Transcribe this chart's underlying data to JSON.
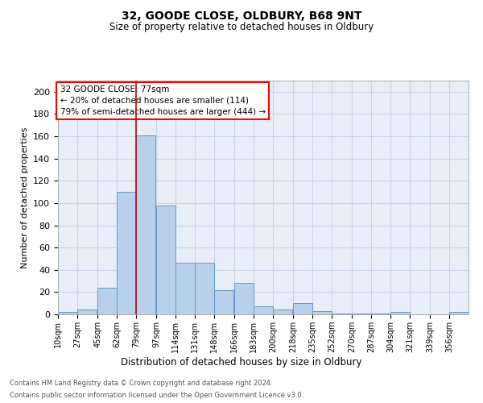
{
  "title1": "32, GOODE CLOSE, OLDBURY, B68 9NT",
  "title2": "Size of property relative to detached houses in Oldbury",
  "xlabel": "Distribution of detached houses by size in Oldbury",
  "ylabel": "Number of detached properties",
  "footnote1": "Contains HM Land Registry data © Crown copyright and database right 2024.",
  "footnote2": "Contains public sector information licensed under the Open Government Licence v3.0.",
  "annotation_line1": "32 GOODE CLOSE: 77sqm",
  "annotation_line2": "← 20% of detached houses are smaller (114)",
  "annotation_line3": "79% of semi-detached houses are larger (444) →",
  "bin_labels": [
    "10sqm",
    "27sqm",
    "45sqm",
    "62sqm",
    "79sqm",
    "97sqm",
    "114sqm",
    "131sqm",
    "148sqm",
    "166sqm",
    "183sqm",
    "200sqm",
    "218sqm",
    "235sqm",
    "252sqm",
    "270sqm",
    "287sqm",
    "304sqm",
    "321sqm",
    "339sqm",
    "356sqm"
  ],
  "bin_edges": [
    10,
    27,
    45,
    62,
    79,
    97,
    114,
    131,
    148,
    166,
    183,
    200,
    218,
    235,
    252,
    270,
    287,
    304,
    321,
    339,
    356
  ],
  "bar_heights": [
    2,
    4,
    24,
    110,
    161,
    98,
    46,
    46,
    22,
    28,
    7,
    4,
    10,
    3,
    1,
    1,
    1,
    2,
    0,
    0,
    2
  ],
  "bar_color": "#b8d0ea",
  "bar_edge_color": "#6699cc",
  "grid_color": "#c8d4e8",
  "bg_color": "#e8eef8",
  "vline_x": 79,
  "vline_color": "#cc0000",
  "ylim": [
    0,
    210
  ],
  "yticks": [
    0,
    20,
    40,
    60,
    80,
    100,
    120,
    140,
    160,
    180,
    200
  ]
}
